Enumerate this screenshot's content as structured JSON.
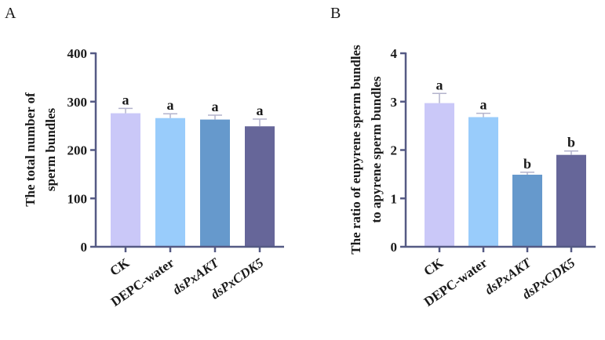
{
  "chart_data": [
    {
      "panel": "A",
      "type": "bar",
      "title": "",
      "xlabel": "",
      "ylabel_lines": [
        "The total number of",
        "sperm bundles"
      ],
      "categories": [
        "CK",
        "DEPC-water",
        "dsPxAKT",
        "dsPxCDK5"
      ],
      "italic_prefix": [
        "",
        "",
        "ds",
        "ds"
      ],
      "italic_rest": [
        "",
        "",
        "PxAKT",
        "PxCDK5"
      ],
      "values": [
        276,
        266,
        263,
        249
      ],
      "errors": [
        10,
        9,
        9,
        15
      ],
      "significance": [
        "a",
        "a",
        "a",
        "a"
      ],
      "colors": [
        "#cac8f8",
        "#99ccfb",
        "#6699cc",
        "#666699"
      ],
      "ylim": [
        0,
        400
      ],
      "yticks": [
        "0",
        "100",
        "200",
        "300",
        "400"
      ],
      "ytick_values": [
        0,
        100,
        200,
        300,
        400
      ]
    },
    {
      "panel": "B",
      "type": "bar",
      "title": "",
      "xlabel": "",
      "ylabel_lines": [
        "The ratio of eupyrene sperm bundles",
        "to apyrene sperm bundles"
      ],
      "categories": [
        "CK",
        "DEPC-water",
        "dsPxAKT",
        "dsPxCDK5"
      ],
      "italic_prefix": [
        "",
        "",
        "ds",
        "ds"
      ],
      "italic_rest": [
        "",
        "",
        "PxAKT",
        "PxCDK5"
      ],
      "values": [
        2.97,
        2.68,
        1.49,
        1.9
      ],
      "errors": [
        0.2,
        0.08,
        0.05,
        0.08
      ],
      "significance": [
        "a",
        "a",
        "b",
        "b"
      ],
      "colors": [
        "#cac8f8",
        "#99ccfb",
        "#6699cc",
        "#666699"
      ],
      "ylim": [
        0,
        4
      ],
      "yticks": [
        "0",
        "1",
        "2",
        "3",
        "4"
      ],
      "ytick_values": [
        0,
        1,
        2,
        3,
        4
      ]
    }
  ],
  "panel_labels": [
    "A",
    "B"
  ],
  "axis_color": "#555a84",
  "error_color": "#b3b3cc"
}
